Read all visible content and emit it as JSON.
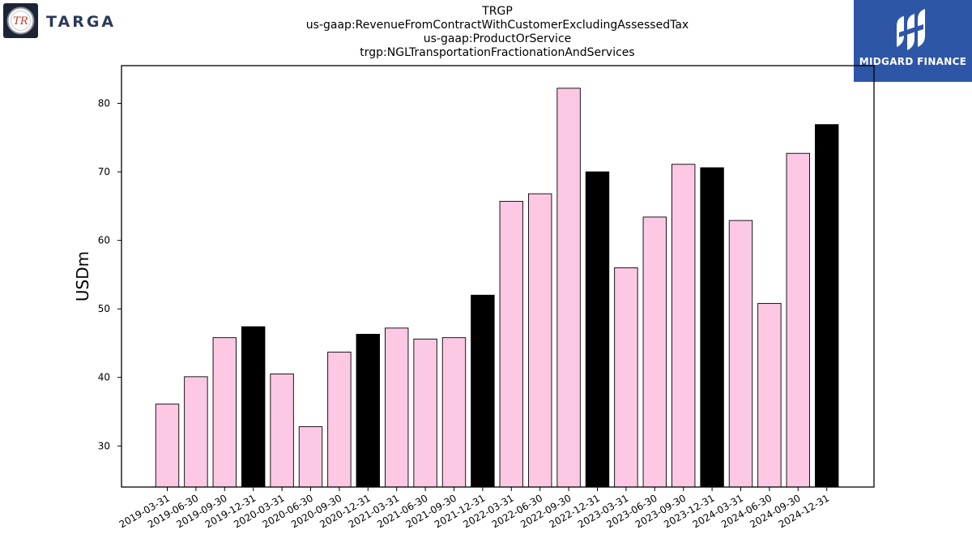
{
  "header": {
    "title_lines": [
      "TRGP",
      "us-gaap:RevenueFromContractWithCustomerExcludingAssessedTax",
      "us-gaap:ProductOrService",
      "trgp:NGLTransportationFractionationAndServices"
    ]
  },
  "logos": {
    "left": {
      "text": "TARGA",
      "icon": "targa-tr-logo-icon",
      "monogram": "TR"
    },
    "right": {
      "text": "MIDGARD FINANCE",
      "icon": "midgard-logo-icon",
      "background": "#2e56a7"
    }
  },
  "chart_data": {
    "type": "bar",
    "ylabel": "USDm",
    "xlabel": "",
    "ylim": [
      24,
      85.5
    ],
    "yticks": [
      30,
      40,
      50,
      60,
      70,
      80
    ],
    "grid": false,
    "colors": {
      "quarter": "#fcc8e4",
      "year_end": "#000000",
      "edge": "#000000"
    },
    "categories": [
      "2019-03-31",
      "2019-06-30",
      "2019-09-30",
      "2019-12-31",
      "2020-03-31",
      "2020-06-30",
      "2020-09-30",
      "2020-12-31",
      "2021-03-31",
      "2021-06-30",
      "2021-09-30",
      "2021-12-31",
      "2022-03-31",
      "2022-06-30",
      "2022-09-30",
      "2022-12-31",
      "2023-03-31",
      "2023-06-30",
      "2023-09-30",
      "2023-12-31",
      "2024-03-31",
      "2024-06-30",
      "2024-09-30",
      "2024-12-31"
    ],
    "values": [
      36.1,
      40.1,
      45.8,
      47.4,
      40.5,
      32.8,
      43.7,
      46.3,
      47.2,
      45.6,
      45.8,
      52.0,
      65.7,
      66.8,
      82.2,
      70.0,
      56.0,
      63.4,
      71.1,
      70.6,
      62.9,
      50.8,
      72.7,
      76.9
    ],
    "highlight": [
      false,
      false,
      false,
      true,
      false,
      false,
      false,
      true,
      false,
      false,
      false,
      true,
      false,
      false,
      false,
      true,
      false,
      false,
      false,
      true,
      false,
      false,
      false,
      true
    ]
  }
}
